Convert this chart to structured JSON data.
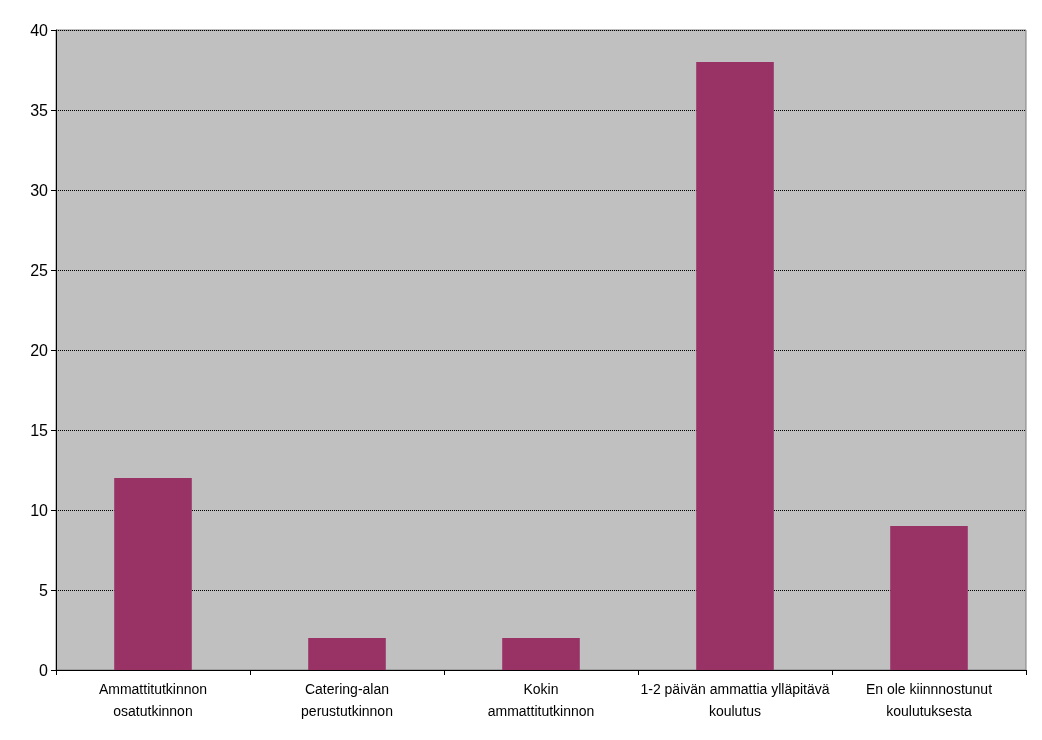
{
  "chart_data": {
    "type": "bar",
    "categories": [
      "Ammattitutkinnon\nosatutkinnon",
      "Catering-alan\nperustutkinnon",
      "Kokin\nammattitutkinnon",
      "1-2 päivän ammattia ylläpitävä\nkoulutus",
      "En ole kiinnnostunut\nkoulutuksesta"
    ],
    "values": [
      12,
      2,
      2,
      38,
      9
    ],
    "color": "#993366",
    "ylim": [
      0,
      40
    ],
    "yticks": [
      0,
      5,
      10,
      15,
      20,
      25,
      30,
      35,
      40
    ],
    "grid": "y"
  }
}
